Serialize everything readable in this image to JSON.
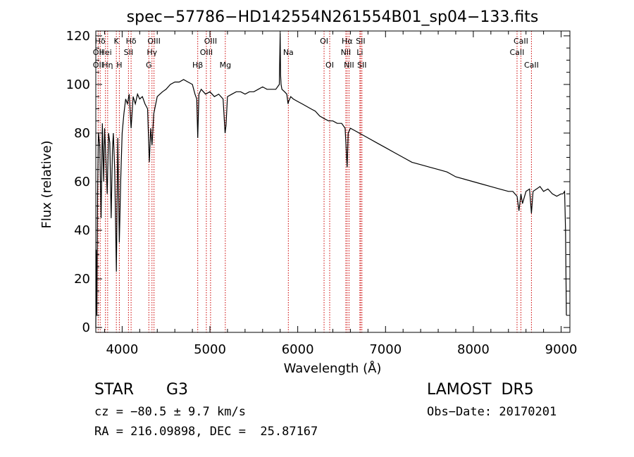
{
  "chart_data": {
    "type": "line",
    "title": "spec−57786−HD142554N261554B01_sp04−133.fits",
    "xlabel": "Wavelength (Å)",
    "ylabel": "Flux (relative)",
    "xlim": [
      3700,
      9100
    ],
    "ylim": [
      -2,
      122
    ],
    "xticks": [
      4000,
      5000,
      6000,
      7000,
      8000,
      9000
    ],
    "yticks": [
      0,
      20,
      40,
      60,
      80,
      100,
      120
    ],
    "grid": false,
    "series": [
      {
        "x": [
          3700,
          3705,
          3712,
          3720,
          3730,
          3745,
          3760,
          3775,
          3790,
          3800,
          3815,
          3830,
          3845,
          3860,
          3875,
          3889,
          3900,
          3915,
          3934,
          3950,
          3968,
          3985,
          4000,
          4020,
          4040,
          4060,
          4080,
          4102,
          4125,
          4150,
          4175,
          4200,
          4230,
          4260,
          4290,
          4310,
          4325,
          4340,
          4360,
          4383,
          4400,
          4430,
          4460,
          4500,
          4550,
          4600,
          4650,
          4700,
          4750,
          4800,
          4830,
          4850,
          4861,
          4875,
          4900,
          4950,
          5000,
          5050,
          5100,
          5150,
          5172,
          5183,
          5200,
          5250,
          5300,
          5350,
          5400,
          5450,
          5500,
          5550,
          5600,
          5650,
          5700,
          5750,
          5790,
          5800,
          5805,
          5810,
          5815,
          5820,
          5850,
          5875,
          5890,
          5896,
          5920,
          5950,
          6000,
          6050,
          6100,
          6150,
          6200,
          6250,
          6300,
          6350,
          6400,
          6450,
          6500,
          6540,
          6563,
          6575,
          6600,
          6650,
          6700,
          6750,
          6800,
          6900,
          7000,
          7100,
          7200,
          7300,
          7400,
          7500,
          7600,
          7700,
          7800,
          7900,
          8000,
          8100,
          8200,
          8300,
          8400,
          8450,
          8498,
          8520,
          8542,
          8560,
          8600,
          8640,
          8662,
          8680,
          8720,
          8760,
          8800,
          8850,
          8900,
          8950,
          9000,
          9020,
          9040,
          9050,
          9060
        ],
        "y": [
          0,
          32,
          5,
          55,
          80,
          75,
          45,
          84,
          60,
          82,
          70,
          55,
          80,
          76,
          45,
          73,
          80,
          65,
          23,
          78,
          35,
          62,
          80,
          88,
          94,
          92,
          96,
          82,
          95,
          92,
          96,
          94,
          95,
          92,
          90,
          68,
          82,
          75,
          88,
          92,
          95,
          96,
          97,
          98,
          100,
          101,
          101,
          102,
          101,
          100,
          96,
          94,
          78,
          96,
          98,
          96,
          97,
          95,
          96,
          94,
          80,
          83,
          95,
          96,
          97,
          97,
          96,
          97,
          97,
          98,
          99,
          98,
          98,
          98,
          100,
          121,
          104,
          100,
          99,
          98,
          97,
          96,
          92,
          93,
          95,
          94,
          93,
          92,
          91,
          90,
          89,
          87,
          86,
          85,
          85,
          84,
          84,
          82,
          66,
          80,
          82,
          81,
          80,
          79,
          78,
          76,
          74,
          72,
          70,
          68,
          67,
          66,
          65,
          64,
          62,
          61,
          60,
          59,
          58,
          57,
          56,
          56,
          54,
          48,
          55,
          51,
          56,
          57,
          47,
          56,
          57,
          58,
          56,
          57,
          55,
          54,
          55,
          55,
          56,
          40,
          5
        ]
      }
    ],
    "lines": [
      {
        "name": "Hδ",
        "wl": 3750,
        "row": 1
      },
      {
        "name": "OII",
        "wl": 3727,
        "row": 2
      },
      {
        "name": "OII",
        "wl": 3727,
        "row": 3
      },
      {
        "name": "Hei",
        "wl": 3810,
        "row": 2
      },
      {
        "name": "Hη",
        "wl": 3835,
        "row": 3
      },
      {
        "name": "K",
        "wl": 3934,
        "row": 1
      },
      {
        "name": "H",
        "wl": 3968,
        "row": 3
      },
      {
        "name": "SII",
        "wl": 4072,
        "row": 2
      },
      {
        "name": "Hδ",
        "wl": 4102,
        "row": 1
      },
      {
        "name": "OIII",
        "wl": 4363,
        "row": 1
      },
      {
        "name": "Hγ",
        "wl": 4340,
        "row": 2
      },
      {
        "name": "G",
        "wl": 4304,
        "row": 3
      },
      {
        "name": "Hβ",
        "wl": 4861,
        "row": 3
      },
      {
        "name": "OIII",
        "wl": 4959,
        "row": 2
      },
      {
        "name": "OIII",
        "wl": 5007,
        "row": 1
      },
      {
        "name": "Mg",
        "wl": 5175,
        "row": 3
      },
      {
        "name": "Na",
        "wl": 5893,
        "row": 2
      },
      {
        "name": "OI",
        "wl": 6300,
        "row": 1
      },
      {
        "name": "OI",
        "wl": 6364,
        "row": 3
      },
      {
        "name": "Hα",
        "wl": 6563,
        "row": 1
      },
      {
        "name": "NII",
        "wl": 6548,
        "row": 2
      },
      {
        "name": "NII",
        "wl": 6584,
        "row": 3
      },
      {
        "name": "SII",
        "wl": 6716,
        "row": 1
      },
      {
        "name": "Li",
        "wl": 6708,
        "row": 2
      },
      {
        "name": "SII",
        "wl": 6731,
        "row": 3
      },
      {
        "name": "CaII",
        "wl": 8542,
        "row": 1
      },
      {
        "name": "CaII",
        "wl": 8498,
        "row": 2
      },
      {
        "name": "CaII",
        "wl": 8662,
        "row": 3
      }
    ]
  },
  "info": {
    "object_class": "STAR",
    "subclass": "G3",
    "survey": "LAMOST  DR5",
    "redshift": "cz = −80.5 ± 9.7 km/s",
    "obs_date": "Obs−Date: 20170201",
    "coords": "RA = 216.09898, DEC =  25.87167"
  },
  "colors": {
    "spectrum": "#000000",
    "line_markers": "#cc0000",
    "axes": "#000000"
  }
}
